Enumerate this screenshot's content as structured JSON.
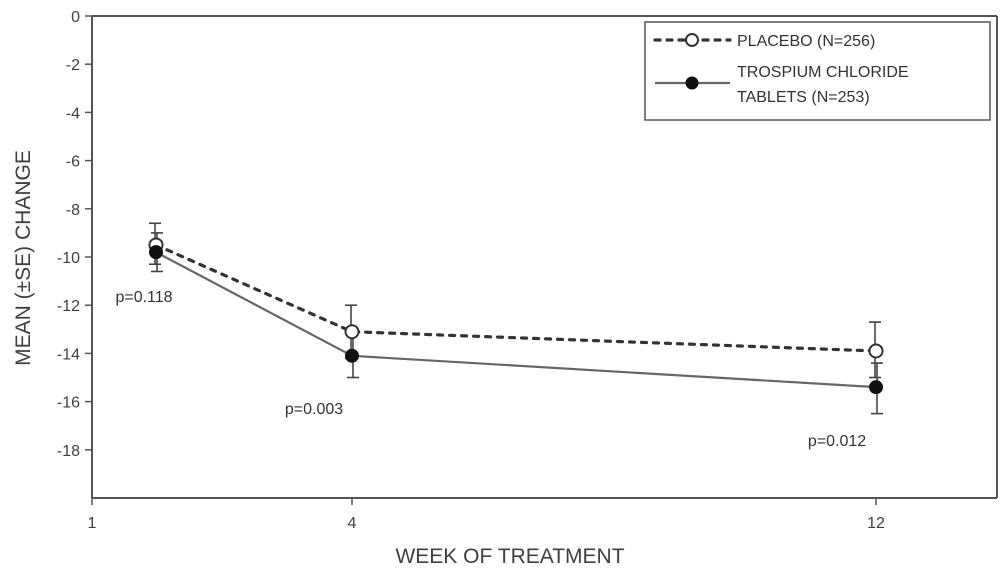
{
  "chart_data": {
    "type": "line",
    "xlabel": "WEEK OF TREATMENT",
    "ylabel": "MEAN (±SE) CHANGE",
    "ylim": [
      -20,
      0
    ],
    "y_ticks": [
      "0",
      "-2",
      "-4",
      "-6",
      "-8",
      "-10",
      "-12",
      "-14",
      "-16",
      "-18"
    ],
    "x_ticks": [
      "1",
      "4",
      "12"
    ],
    "legend_position": "top-right",
    "grid": false,
    "series": [
      {
        "name": "PLACEBO (N=256)",
        "line_style": "dotted",
        "marker": "open-circle",
        "color": "#333333",
        "points": [
          {
            "x": "1",
            "y": -9.5,
            "se_upper": -8.6,
            "se_lower": -10.3
          },
          {
            "x": "4",
            "y": -13.1,
            "se_upper": -12.0,
            "se_lower": -14.2
          },
          {
            "x": "12",
            "y": -13.9,
            "se_upper": -12.7,
            "se_lower": -15.0
          }
        ]
      },
      {
        "name": "TROSPIUM CHLORIDE TABLETS (N=253)",
        "legend_lines": [
          "TROSPIUM CHLORIDE",
          "TABLETS (N=253)"
        ],
        "line_style": "solid",
        "marker": "filled-circle",
        "color": "#666666",
        "points": [
          {
            "x": "1",
            "y": -9.8,
            "se_upper": -9.0,
            "se_lower": -10.6
          },
          {
            "x": "4",
            "y": -14.1,
            "se_upper": -13.2,
            "se_lower": -15.0
          },
          {
            "x": "12",
            "y": -15.4,
            "se_upper": -14.4,
            "se_lower": -16.5
          }
        ]
      }
    ],
    "annotations": [
      {
        "text": "p=0.118",
        "x": "1"
      },
      {
        "text": "p=0.003",
        "x": "4"
      },
      {
        "text": "p=0.012",
        "x": "12"
      }
    ]
  }
}
